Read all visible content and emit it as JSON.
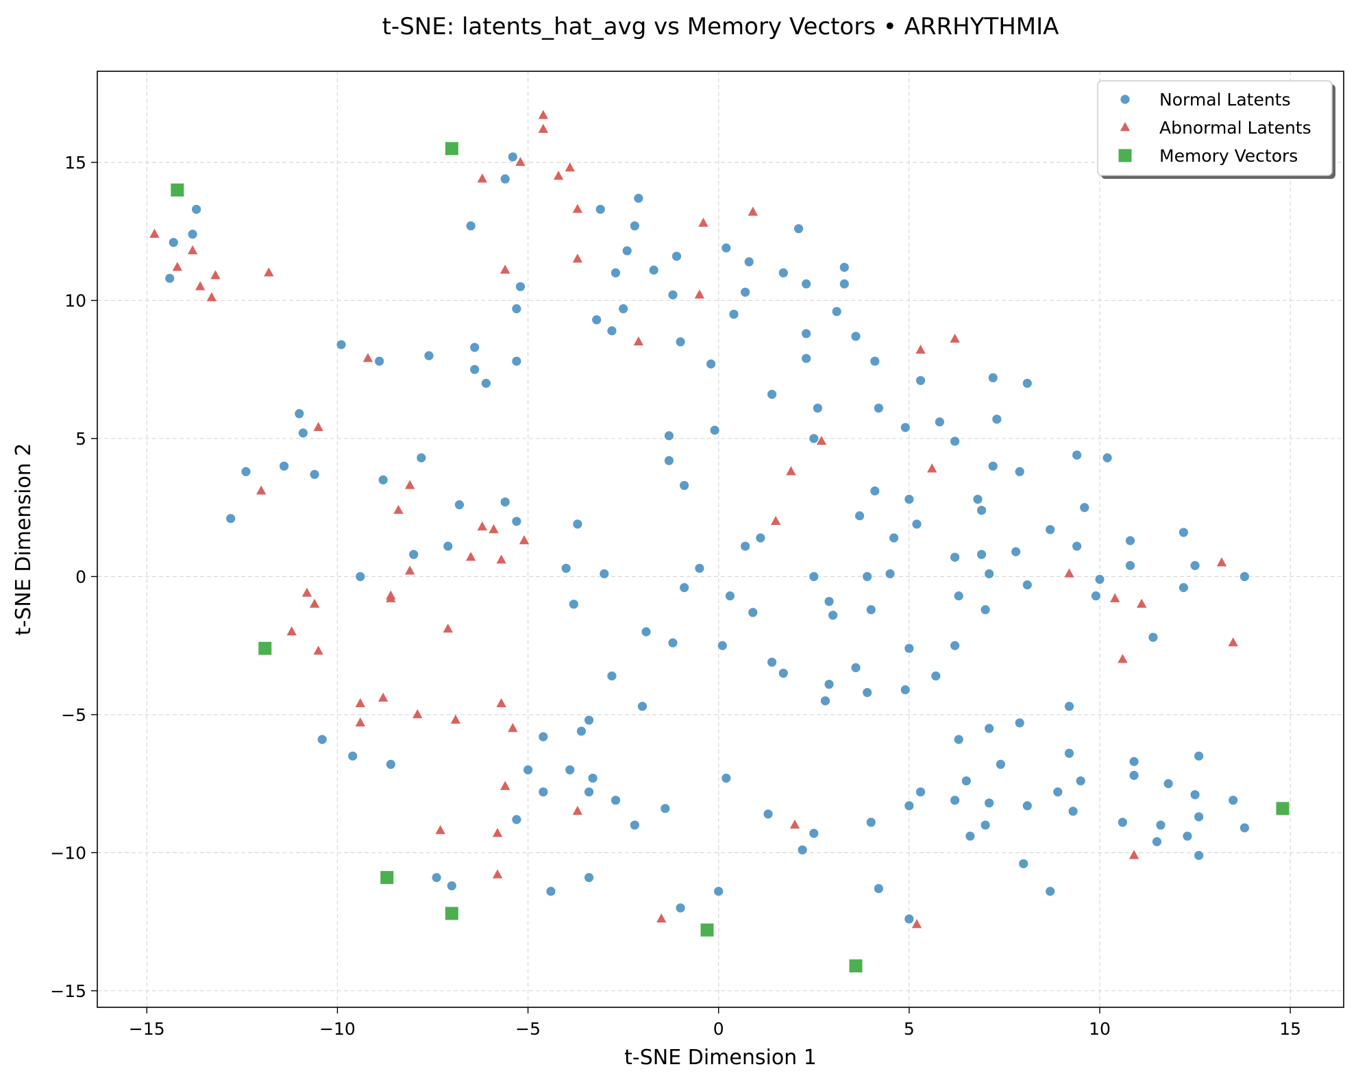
{
  "chart_data": {
    "type": "scatter",
    "title": "t-SNE: latents_hat_avg vs Memory Vectors • ARRHYTHMIA",
    "xlabel": "t-SNE Dimension 1",
    "ylabel": "t-SNE Dimension 2",
    "xlim": [
      -16.3,
      16.4
    ],
    "ylim": [
      -15.6,
      18.3
    ],
    "xticks": [
      -15,
      -10,
      -5,
      0,
      5,
      10,
      15
    ],
    "yticks": [
      -15,
      -10,
      -5,
      0,
      5,
      10,
      15
    ],
    "xtick_labels": [
      "−15",
      "−10",
      "−5",
      "0",
      "5",
      "10",
      "15"
    ],
    "ytick_labels": [
      "−15",
      "−10",
      "−5",
      "0",
      "5",
      "10",
      "15"
    ],
    "grid": true,
    "legend_position": "top-right",
    "series": [
      {
        "name": "Normal Latents",
        "color": "#5B9BC8",
        "marker": "circle",
        "points": [
          [
            -14.4,
            10.8
          ],
          [
            -14.3,
            12.1
          ],
          [
            -13.8,
            12.4
          ],
          [
            -13.7,
            13.3
          ],
          [
            -12.8,
            2.1
          ],
          [
            -12.4,
            3.8
          ],
          [
            -11.4,
            4.0
          ],
          [
            -11.0,
            5.9
          ],
          [
            -10.9,
            5.2
          ],
          [
            -10.6,
            3.7
          ],
          [
            -10.4,
            -5.9
          ],
          [
            -9.9,
            8.4
          ],
          [
            -9.6,
            -6.5
          ],
          [
            -9.4,
            0.0
          ],
          [
            -8.9,
            7.8
          ],
          [
            -8.8,
            3.5
          ],
          [
            -8.6,
            -6.8
          ],
          [
            -8.0,
            0.8
          ],
          [
            -7.8,
            4.3
          ],
          [
            -7.6,
            8.0
          ],
          [
            -7.4,
            -10.9
          ],
          [
            -7.1,
            1.1
          ],
          [
            -7.0,
            -11.2
          ],
          [
            -6.8,
            2.6
          ],
          [
            -6.5,
            12.7
          ],
          [
            -6.4,
            8.3
          ],
          [
            -6.4,
            7.5
          ],
          [
            -6.1,
            7.0
          ],
          [
            -5.6,
            2.7
          ],
          [
            -5.6,
            14.4
          ],
          [
            -5.4,
            15.2
          ],
          [
            -5.3,
            9.7
          ],
          [
            -5.3,
            7.8
          ],
          [
            -5.3,
            2.0
          ],
          [
            -5.2,
            10.5
          ],
          [
            -5.3,
            -8.8
          ],
          [
            -5.0,
            -7.0
          ],
          [
            -4.6,
            -5.8
          ],
          [
            -4.6,
            -7.8
          ],
          [
            -4.4,
            -11.4
          ],
          [
            -4.0,
            0.3
          ],
          [
            -3.8,
            -1.0
          ],
          [
            -3.9,
            -7.0
          ],
          [
            -3.6,
            -5.6
          ],
          [
            -3.7,
            1.9
          ],
          [
            -3.4,
            -5.2
          ],
          [
            -3.4,
            -7.8
          ],
          [
            -3.3,
            -7.3
          ],
          [
            -3.4,
            -10.9
          ],
          [
            -3.2,
            9.3
          ],
          [
            -3.1,
            13.3
          ],
          [
            -3.0,
            0.1
          ],
          [
            -2.8,
            8.9
          ],
          [
            -2.8,
            -3.6
          ],
          [
            -2.7,
            11.0
          ],
          [
            -2.7,
            -8.1
          ],
          [
            -2.5,
            9.7
          ],
          [
            -2.4,
            11.8
          ],
          [
            -2.2,
            -9.0
          ],
          [
            -2.2,
            12.7
          ],
          [
            -2.1,
            13.7
          ],
          [
            -2.0,
            -4.7
          ],
          [
            -1.9,
            -2.0
          ],
          [
            -1.7,
            11.1
          ],
          [
            -1.4,
            -8.4
          ],
          [
            -1.3,
            5.1
          ],
          [
            -1.3,
            4.2
          ],
          [
            -1.2,
            10.2
          ],
          [
            -1.2,
            -2.4
          ],
          [
            -1.1,
            11.6
          ],
          [
            -1.0,
            8.5
          ],
          [
            -0.9,
            3.3
          ],
          [
            -0.9,
            -0.4
          ],
          [
            -1.0,
            -12.0
          ],
          [
            -0.2,
            7.7
          ],
          [
            -0.1,
            5.3
          ],
          [
            -0.5,
            0.3
          ],
          [
            0.1,
            -2.5
          ],
          [
            0.0,
            -11.4
          ],
          [
            0.2,
            11.9
          ],
          [
            0.2,
            -7.3
          ],
          [
            0.3,
            -0.7
          ],
          [
            0.4,
            9.5
          ],
          [
            0.8,
            11.4
          ],
          [
            0.7,
            10.3
          ],
          [
            0.7,
            1.1
          ],
          [
            0.9,
            -1.3
          ],
          [
            1.1,
            1.4
          ],
          [
            1.3,
            -8.6
          ],
          [
            1.4,
            6.6
          ],
          [
            1.4,
            -3.1
          ],
          [
            1.7,
            11.0
          ],
          [
            1.7,
            -3.5
          ],
          [
            2.1,
            12.6
          ],
          [
            2.2,
            -9.9
          ],
          [
            2.3,
            10.6
          ],
          [
            2.3,
            8.8
          ],
          [
            2.3,
            7.9
          ],
          [
            2.5,
            5.0
          ],
          [
            2.5,
            0.0
          ],
          [
            2.5,
            -9.3
          ],
          [
            2.6,
            6.1
          ],
          [
            2.8,
            -4.5
          ],
          [
            2.9,
            -0.9
          ],
          [
            2.9,
            -3.9
          ],
          [
            3.0,
            -1.4
          ],
          [
            3.1,
            9.6
          ],
          [
            3.3,
            11.2
          ],
          [
            3.3,
            10.6
          ],
          [
            3.6,
            8.7
          ],
          [
            3.6,
            -3.3
          ],
          [
            3.7,
            2.2
          ],
          [
            3.9,
            -4.2
          ],
          [
            3.9,
            0.0
          ],
          [
            4.0,
            -1.2
          ],
          [
            4.0,
            -8.9
          ],
          [
            4.1,
            7.8
          ],
          [
            4.1,
            3.1
          ],
          [
            4.2,
            6.1
          ],
          [
            4.2,
            -11.3
          ],
          [
            4.6,
            1.4
          ],
          [
            4.5,
            0.1
          ],
          [
            4.9,
            5.4
          ],
          [
            4.9,
            -4.1
          ],
          [
            5.0,
            2.8
          ],
          [
            5.0,
            -8.3
          ],
          [
            5.0,
            -2.6
          ],
          [
            5.0,
            -12.4
          ],
          [
            5.2,
            1.9
          ],
          [
            5.3,
            7.1
          ],
          [
            5.3,
            -7.8
          ],
          [
            5.7,
            -3.6
          ],
          [
            5.8,
            5.6
          ],
          [
            6.2,
            4.9
          ],
          [
            6.2,
            -8.1
          ],
          [
            6.2,
            0.7
          ],
          [
            6.2,
            -2.5
          ],
          [
            6.3,
            -0.7
          ],
          [
            6.3,
            -5.9
          ],
          [
            6.5,
            -7.4
          ],
          [
            6.6,
            -9.4
          ],
          [
            6.8,
            2.8
          ],
          [
            6.9,
            2.4
          ],
          [
            6.9,
            0.8
          ],
          [
            7.0,
            -1.2
          ],
          [
            7.0,
            -9.0
          ],
          [
            7.2,
            7.2
          ],
          [
            7.2,
            4.0
          ],
          [
            7.1,
            0.1
          ],
          [
            7.1,
            -5.5
          ],
          [
            7.1,
            -8.2
          ],
          [
            7.3,
            5.7
          ],
          [
            7.4,
            -6.8
          ],
          [
            7.8,
            0.9
          ],
          [
            7.9,
            3.8
          ],
          [
            7.9,
            -5.3
          ],
          [
            8.0,
            -10.4
          ],
          [
            8.1,
            7.0
          ],
          [
            8.1,
            -0.3
          ],
          [
            8.1,
            -8.3
          ],
          [
            8.7,
            1.7
          ],
          [
            8.7,
            -11.4
          ],
          [
            8.9,
            -7.8
          ],
          [
            9.2,
            -6.4
          ],
          [
            9.2,
            -4.7
          ],
          [
            9.3,
            -8.5
          ],
          [
            9.4,
            4.4
          ],
          [
            9.4,
            1.1
          ],
          [
            9.5,
            -7.4
          ],
          [
            9.6,
            2.5
          ],
          [
            9.9,
            -0.7
          ],
          [
            10.0,
            -0.1
          ],
          [
            10.2,
            4.3
          ],
          [
            10.6,
            -8.9
          ],
          [
            10.8,
            1.3
          ],
          [
            10.8,
            0.4
          ],
          [
            10.9,
            -6.7
          ],
          [
            10.9,
            -7.2
          ],
          [
            11.4,
            -2.2
          ],
          [
            11.5,
            -9.6
          ],
          [
            11.6,
            -9.0
          ],
          [
            11.8,
            -7.5
          ],
          [
            12.2,
            1.6
          ],
          [
            12.2,
            -0.4
          ],
          [
            12.3,
            -9.4
          ],
          [
            12.5,
            0.4
          ],
          [
            12.5,
            -7.9
          ],
          [
            12.6,
            -8.7
          ],
          [
            12.6,
            -10.1
          ],
          [
            12.6,
            -6.5
          ],
          [
            13.5,
            -8.1
          ],
          [
            13.8,
            0.0
          ],
          [
            13.8,
            -9.1
          ]
        ]
      },
      {
        "name": "Abnormal Latents",
        "color": "#D9625E",
        "marker": "triangle",
        "points": [
          [
            -14.8,
            12.4
          ],
          [
            -14.2,
            11.2
          ],
          [
            -13.8,
            11.8
          ],
          [
            -13.6,
            10.5
          ],
          [
            -13.3,
            10.1
          ],
          [
            -13.2,
            10.9
          ],
          [
            -12.0,
            3.1
          ],
          [
            -11.8,
            11.0
          ],
          [
            -11.2,
            -2.0
          ],
          [
            -10.8,
            -0.6
          ],
          [
            -10.6,
            -1.0
          ],
          [
            -10.5,
            5.4
          ],
          [
            -10.5,
            -2.7
          ],
          [
            -9.4,
            -4.6
          ],
          [
            -9.4,
            -5.3
          ],
          [
            -9.2,
            7.9
          ],
          [
            -8.8,
            -4.4
          ],
          [
            -8.6,
            -0.7
          ],
          [
            -8.6,
            -0.8
          ],
          [
            -8.4,
            2.4
          ],
          [
            -8.1,
            3.3
          ],
          [
            -8.1,
            0.2
          ],
          [
            -7.9,
            -5.0
          ],
          [
            -7.3,
            -9.2
          ],
          [
            -7.1,
            -1.9
          ],
          [
            -6.9,
            -5.2
          ],
          [
            -6.5,
            0.7
          ],
          [
            -6.2,
            14.4
          ],
          [
            -6.2,
            1.8
          ],
          [
            -5.9,
            1.7
          ],
          [
            -5.8,
            -9.3
          ],
          [
            -5.8,
            -10.8
          ],
          [
            -5.7,
            -4.6
          ],
          [
            -5.6,
            11.1
          ],
          [
            -5.7,
            0.6
          ],
          [
            -5.6,
            -7.6
          ],
          [
            -5.4,
            -5.5
          ],
          [
            -5.2,
            15.0
          ],
          [
            -5.1,
            1.3
          ],
          [
            -4.6,
            16.7
          ],
          [
            -4.6,
            16.2
          ],
          [
            -4.2,
            14.5
          ],
          [
            -3.9,
            14.8
          ],
          [
            -3.7,
            13.3
          ],
          [
            -3.7,
            11.5
          ],
          [
            -3.7,
            -8.5
          ],
          [
            -2.1,
            8.5
          ],
          [
            -1.5,
            -12.4
          ],
          [
            -0.5,
            10.2
          ],
          [
            -0.4,
            12.8
          ],
          [
            0.9,
            13.2
          ],
          [
            1.5,
            2.0
          ],
          [
            1.9,
            3.8
          ],
          [
            2.0,
            -9.0
          ],
          [
            2.7,
            4.9
          ],
          [
            5.2,
            -12.6
          ],
          [
            5.3,
            8.2
          ],
          [
            5.6,
            3.9
          ],
          [
            6.2,
            8.6
          ],
          [
            9.2,
            0.1
          ],
          [
            10.4,
            -0.8
          ],
          [
            10.6,
            -3.0
          ],
          [
            10.9,
            -10.1
          ],
          [
            11.1,
            -1.0
          ],
          [
            13.2,
            0.5
          ],
          [
            13.5,
            -2.4
          ]
        ]
      },
      {
        "name": "Memory Vectors",
        "color": "#4CAF50",
        "marker": "square",
        "points": [
          [
            -14.2,
            14.0
          ],
          [
            -7.0,
            15.5
          ],
          [
            -11.9,
            -2.6
          ],
          [
            -8.7,
            -10.9
          ],
          [
            -7.0,
            -12.2
          ],
          [
            -0.3,
            -12.8
          ],
          [
            3.6,
            -14.1
          ],
          [
            14.8,
            -8.4
          ]
        ]
      }
    ]
  }
}
